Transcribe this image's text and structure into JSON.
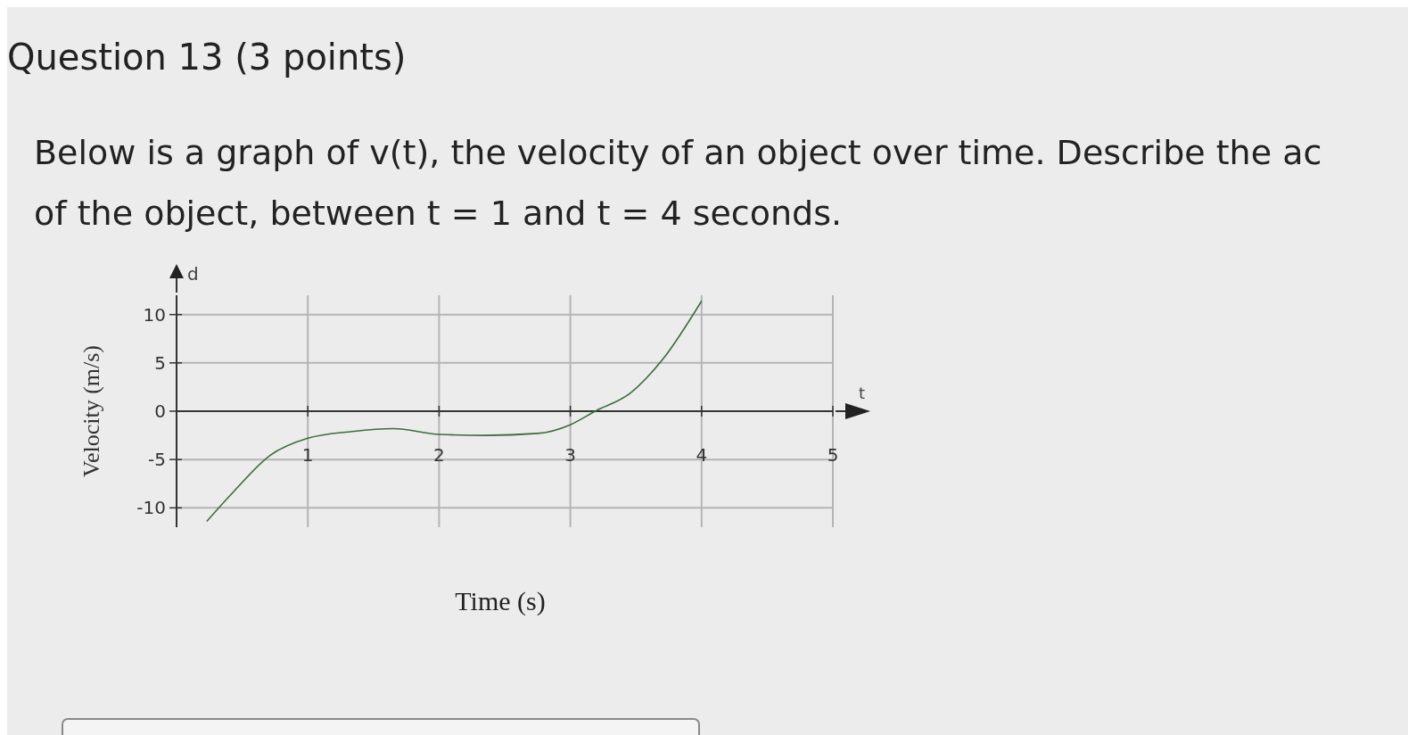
{
  "chart_data": {
    "type": "line",
    "title": "Question 13 (3 points)",
    "subtitle": "Below is a graph of v(t), the velocity of an object over time. Describe the ac\nof the object, between t = 1 and t = 4 seconds.",
    "xlabel": "Time (s)",
    "ylabel": "Velocity (m/s)",
    "annotations": [
      "d",
      "t"
    ],
    "series": [
      {
        "color": "#3d6b3d",
        "x": [
          0.23,
          0.43,
          0.71,
          1,
          1.34,
          1.65,
          2,
          2.35,
          2.75,
          3,
          3.19,
          3.46,
          3.7,
          4
        ],
        "values": [
          -11.4,
          -8.4,
          -4.6,
          -2.8,
          -2.1,
          -1.8,
          -2.4,
          -2.5,
          -2.3,
          -1.4,
          0,
          1.9,
          5.3,
          11.4
        ]
      }
    ],
    "xlim": [
      0,
      5
    ],
    "xticks": [
      1,
      2,
      3,
      4,
      5
    ],
    "ylim": [
      -12,
      12
    ],
    "yticks": [
      -10,
      -5,
      0,
      5,
      10
    ],
    "grid": true,
    "marker": "none",
    "line_style": "solid"
  }
}
